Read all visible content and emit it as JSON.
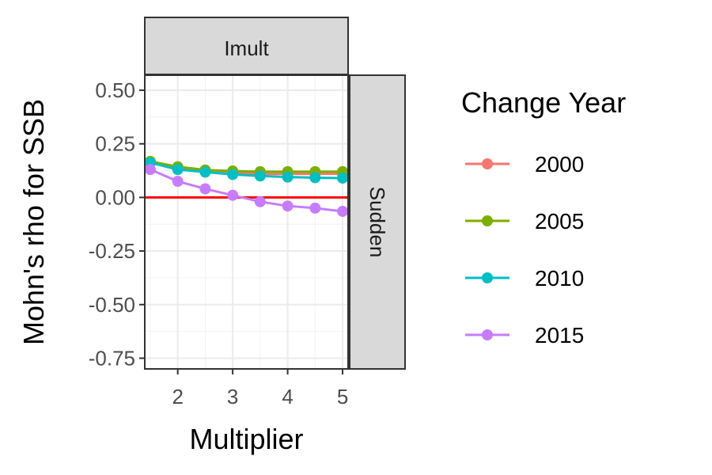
{
  "chart_data": {
    "type": "line",
    "facet_top": "Imult",
    "facet_right": "Sudden",
    "xlabel": "Multiplier",
    "ylabel": "Mohn's rho for SSB",
    "xlim": [
      1.4,
      5.1
    ],
    "ylim": [
      -0.8,
      0.57
    ],
    "x_ticks": [
      2,
      3,
      4,
      5
    ],
    "x_tick_labels": [
      "2",
      "3",
      "4",
      "5"
    ],
    "y_ticks": [
      0.5,
      0.25,
      0,
      -0.25,
      -0.5,
      -0.75
    ],
    "y_tick_labels": [
      "0.50",
      "0.25",
      "0.00",
      "-0.25",
      "-0.50",
      "-0.75"
    ],
    "reference_line": {
      "y": 0,
      "color": "#ff0000"
    },
    "x": [
      1.5,
      2,
      2.5,
      3,
      3.5,
      4,
      4.5,
      5
    ],
    "legend_title": "Change Year",
    "legend_position": "right",
    "grid": true,
    "series": [
      {
        "name": "2000",
        "color": "#F8766D",
        "values": [
          0.165,
          0.14,
          0.125,
          0.115,
          0.11,
          0.11,
          0.11,
          0.11
        ]
      },
      {
        "name": "2005",
        "color": "#7CAE00",
        "values": [
          0.168,
          0.143,
          0.128,
          0.123,
          0.12,
          0.12,
          0.12,
          0.12
        ]
      },
      {
        "name": "2010",
        "color": "#00BFC4",
        "values": [
          0.162,
          0.13,
          0.118,
          0.107,
          0.1,
          0.095,
          0.092,
          0.09
        ]
      },
      {
        "name": "2015",
        "color": "#C77CFF",
        "values": [
          0.13,
          0.075,
          0.04,
          0.01,
          -0.02,
          -0.04,
          -0.05,
          -0.065
        ]
      }
    ]
  }
}
